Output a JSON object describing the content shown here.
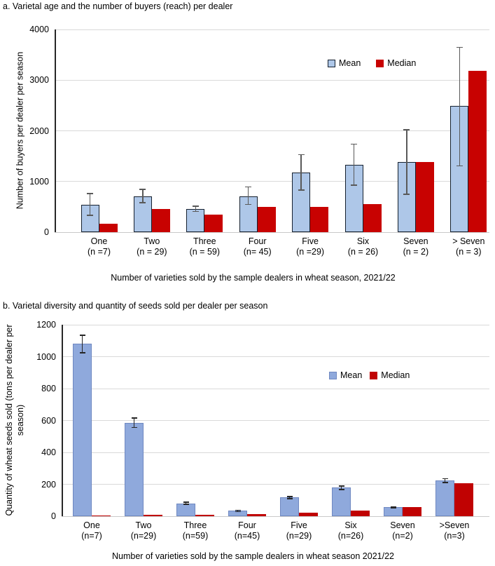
{
  "chart_data": [
    {
      "type": "bar",
      "panel": "a",
      "title": "a. Varietal age and the number of buyers (reach) per dealer",
      "xlabel": "Number of varieties sold by the sample dealers in wheat season, 2021/22",
      "ylabel": "Number of buyers per dealer per season",
      "ylim": [
        0,
        4000
      ],
      "yticks": [
        "0",
        "1000",
        "2000",
        "3000",
        "4000"
      ],
      "grid": true,
      "legend": {
        "position": "inside-top-right",
        "entries": [
          "Mean",
          "Median"
        ]
      },
      "categories": [
        "One",
        "Two",
        "Three",
        "Four",
        "Five",
        "Six",
        "Seven",
        "> Seven"
      ],
      "category_counts": [
        "(n =7)",
        "(n = 29)",
        "(n = 59)",
        "(n= 45)",
        "(n =29)",
        "(n = 26)",
        "(n = 2)",
        "(n = 3)"
      ],
      "series": [
        {
          "name": "Mean",
          "values": [
            540,
            710,
            460,
            710,
            1175,
            1330,
            1390,
            2490
          ],
          "error_low": [
            330,
            580,
            410,
            550,
            830,
            930,
            750,
            1310
          ],
          "error_high": [
            760,
            845,
            515,
            890,
            1530,
            1740,
            2020,
            3650
          ],
          "fill": "#AEC7E8",
          "border": "#15202E"
        },
        {
          "name": "Median",
          "values": [
            170,
            450,
            350,
            500,
            505,
            550,
            1390,
            3190
          ],
          "fill": "#C80201",
          "border": "none"
        }
      ],
      "error_bar_color": "#595959",
      "gridline_color": "#D9D9D9",
      "zero_line_color": "#C9C9C9",
      "axis_color": "#262626"
    },
    {
      "type": "bar",
      "panel": "b",
      "title": "b. Varietal diversity and quantity of seeds sold per dealer per season",
      "xlabel": "Number of varieties sold by the sample dealers in wheat season 2021/22",
      "ylabel": "Quantity of wheat seeds sold (tons per dealer per season)",
      "ylim": [
        0,
        1200
      ],
      "yticks": [
        "0",
        "200",
        "400",
        "600",
        "800",
        "1000",
        "1200"
      ],
      "grid": true,
      "legend": {
        "position": "inside-top-right",
        "entries": [
          "Mean",
          "Median"
        ]
      },
      "categories": [
        "One",
        "Two",
        "Three",
        "Four",
        "Five",
        "Six",
        "Seven",
        ">Seven"
      ],
      "category_counts": [
        "(n=7)",
        "(n=29)",
        "(n=59)",
        "(n=45)",
        "(n=29)",
        "(n=26)",
        "(n=2)",
        "(n=3)"
      ],
      "series": [
        {
          "name": "Mean",
          "values": [
            1080,
            585,
            80,
            33,
            118,
            180,
            55,
            222
          ],
          "error_low": [
            1025,
            555,
            74,
            28,
            110,
            168,
            50,
            210
          ],
          "error_high": [
            1135,
            615,
            87,
            38,
            124,
            190,
            57,
            235
          ],
          "fill": "#8FA9DC",
          "border": "#6F88C1"
        },
        {
          "name": "Median",
          "values": [
            5,
            10,
            10,
            12,
            22,
            37,
            55,
            205
          ],
          "fill": "#C00202",
          "border": "none"
        }
      ],
      "error_bar_color": "#262626",
      "gridline_color": "#D9D9D9",
      "zero_line_color": "#C9C9C9",
      "axis_color": "#262626"
    }
  ]
}
